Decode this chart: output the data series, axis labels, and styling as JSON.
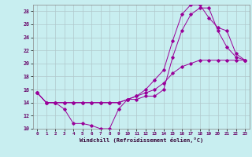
{
  "xlabel": "Windchill (Refroidissement éolien,°C)",
  "background_color": "#c8eef0",
  "grid_color": "#b0c8cc",
  "line_color": "#990099",
  "xlim": [
    -0.5,
    23.5
  ],
  "ylim": [
    10,
    29
  ],
  "yticks": [
    10,
    12,
    14,
    16,
    18,
    20,
    22,
    24,
    26,
    28
  ],
  "xticks": [
    0,
    1,
    2,
    3,
    4,
    5,
    6,
    7,
    8,
    9,
    10,
    11,
    12,
    13,
    14,
    15,
    16,
    17,
    18,
    19,
    20,
    21,
    22,
    23
  ],
  "line1_x": [
    0,
    1,
    2,
    3,
    4,
    5,
    6,
    7,
    8,
    9,
    10,
    11,
    12,
    13,
    14,
    15,
    16,
    17,
    18,
    19,
    20,
    21,
    22,
    23
  ],
  "line1_y": [
    15.5,
    14.0,
    14.0,
    13.0,
    10.8,
    10.8,
    10.5,
    10.0,
    10.0,
    13.0,
    14.5,
    14.5,
    15.0,
    15.0,
    16.0,
    21.0,
    25.0,
    27.5,
    28.5,
    28.5,
    25.0,
    22.5,
    21.0,
    20.5
  ],
  "line2_x": [
    0,
    1,
    2,
    3,
    4,
    5,
    6,
    7,
    8,
    9,
    10,
    11,
    12,
    13,
    14,
    15,
    16,
    17,
    18,
    19,
    20,
    21,
    22,
    23
  ],
  "line2_y": [
    15.5,
    14.0,
    14.0,
    14.0,
    14.0,
    14.0,
    14.0,
    14.0,
    14.0,
    14.0,
    14.5,
    15.0,
    16.0,
    17.5,
    19.0,
    23.5,
    27.5,
    29.0,
    29.0,
    27.0,
    25.5,
    25.0,
    21.5,
    20.5
  ],
  "line3_x": [
    0,
    1,
    2,
    3,
    4,
    5,
    6,
    7,
    8,
    9,
    10,
    11,
    12,
    13,
    14,
    15,
    16,
    17,
    18,
    19,
    20,
    21,
    22,
    23
  ],
  "line3_y": [
    15.5,
    14.0,
    14.0,
    14.0,
    14.0,
    14.0,
    14.0,
    14.0,
    14.0,
    14.0,
    14.5,
    15.0,
    15.5,
    16.0,
    17.0,
    18.5,
    19.5,
    20.0,
    20.5,
    20.5,
    20.5,
    20.5,
    20.5,
    20.5
  ]
}
